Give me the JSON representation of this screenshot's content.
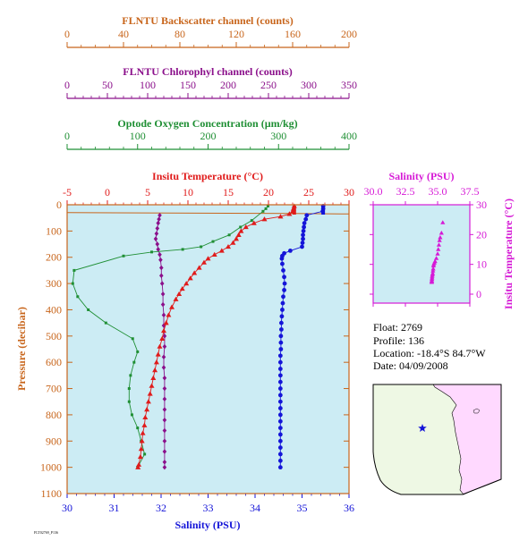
{
  "colors": {
    "backscatter": "#c8651b",
    "chlorophyll": "#8b108b",
    "oxygen": "#1f8f34",
    "temperature": "#e01b1b",
    "salinity": "#1414d8",
    "magenta": "#d61ad6",
    "panel_bg": "#ccecf4",
    "map_land": "#eef8e4",
    "map_sea": "#ffd9ff"
  },
  "float_info": {
    "float": "Float:  2769",
    "profile": "Profile:  136",
    "location": "Location:  -18.4°S  84.7°W",
    "date": "Date:  04/09/2008"
  },
  "footer_code": "FLT02769_P136",
  "chart_data": [
    {
      "type": "line",
      "name": "main_profile",
      "y_axis": {
        "label": "Pressure (decibar)",
        "range": [
          0,
          1100
        ],
        "ticks": [
          0,
          100,
          200,
          300,
          400,
          500,
          600,
          700,
          800,
          900,
          1000,
          1100
        ],
        "inverted": true
      },
      "axes": {
        "backscatter": {
          "title": "FLNTU Backscatter channel (counts)",
          "range": [
            0,
            200
          ],
          "ticks": [
            0,
            40,
            80,
            120,
            160,
            200
          ]
        },
        "chlorophyll": {
          "title": "FLNTU Chlorophyl channel (counts)",
          "range": [
            0,
            350
          ],
          "ticks": [
            0,
            50,
            100,
            150,
            200,
            250,
            300,
            350
          ]
        },
        "oxygen": {
          "title": "Optode Oxygen Concentration (µm/kg)",
          "range": [
            0,
            400
          ],
          "ticks": [
            0,
            100,
            200,
            300,
            400
          ]
        },
        "temperature": {
          "title": "Insitu Temperature (°C)",
          "range": [
            -5,
            30
          ],
          "ticks": [
            -5,
            0,
            5,
            10,
            15,
            20,
            25,
            30
          ]
        },
        "salinity": {
          "title": "Salinity (PSU)",
          "range": [
            30,
            36
          ],
          "ticks": [
            30,
            31,
            32,
            33,
            34,
            35,
            36
          ]
        }
      },
      "series": [
        {
          "key": "temperature",
          "axis": "temperature",
          "marker": "triangle",
          "points": [
            [
              23.2,
              5
            ],
            [
              23.1,
              15
            ],
            [
              23.0,
              25
            ],
            [
              22.6,
              35
            ],
            [
              21.5,
              45
            ],
            [
              19.5,
              55
            ],
            [
              18.2,
              70
            ],
            [
              17.2,
              85
            ],
            [
              16.6,
              100
            ],
            [
              16.3,
              115
            ],
            [
              16.0,
              130
            ],
            [
              15.6,
              145
            ],
            [
              15.0,
              160
            ],
            [
              14.2,
              175
            ],
            [
              13.3,
              190
            ],
            [
              12.5,
              205
            ],
            [
              12.0,
              220
            ],
            [
              11.4,
              240
            ],
            [
              10.8,
              260
            ],
            [
              10.3,
              280
            ],
            [
              9.8,
              300
            ],
            [
              9.3,
              320
            ],
            [
              8.9,
              340
            ],
            [
              8.5,
              360
            ],
            [
              8.0,
              390
            ],
            [
              7.6,
              420
            ],
            [
              7.3,
              450
            ],
            [
              7.0,
              480
            ],
            [
              6.8,
              510
            ],
            [
              6.5,
              540
            ],
            [
              6.3,
              570
            ],
            [
              6.1,
              600
            ],
            [
              5.9,
              630
            ],
            [
              5.7,
              660
            ],
            [
              5.5,
              690
            ],
            [
              5.3,
              720
            ],
            [
              5.1,
              750
            ],
            [
              4.9,
              780
            ],
            [
              4.7,
              810
            ],
            [
              4.6,
              840
            ],
            [
              4.4,
              870
            ],
            [
              4.3,
              900
            ],
            [
              4.2,
              930
            ],
            [
              4.1,
              960
            ],
            [
              3.9,
              990
            ],
            [
              3.8,
              1000
            ]
          ]
        },
        {
          "key": "salinity",
          "axis": "salinity",
          "marker": "circle",
          "points": [
            [
              35.45,
              5
            ],
            [
              35.45,
              15
            ],
            [
              35.44,
              25
            ],
            [
              35.1,
              40
            ],
            [
              35.08,
              55
            ],
            [
              35.05,
              70
            ],
            [
              35.04,
              85
            ],
            [
              35.03,
              100
            ],
            [
              35.02,
              115
            ],
            [
              35.02,
              130
            ],
            [
              35.01,
              145
            ],
            [
              35.0,
              160
            ],
            [
              34.75,
              175
            ],
            [
              34.62,
              185
            ],
            [
              34.58,
              195
            ],
            [
              34.57,
              205
            ],
            [
              34.58,
              225
            ],
            [
              34.6,
              250
            ],
            [
              34.62,
              275
            ],
            [
              34.63,
              300
            ],
            [
              34.62,
              325
            ],
            [
              34.6,
              350
            ],
            [
              34.59,
              375
            ],
            [
              34.58,
              400
            ],
            [
              34.57,
              425
            ],
            [
              34.56,
              450
            ],
            [
              34.56,
              475
            ],
            [
              34.55,
              500
            ],
            [
              34.55,
              525
            ],
            [
              34.55,
              550
            ],
            [
              34.54,
              575
            ],
            [
              34.54,
              600
            ],
            [
              34.54,
              625
            ],
            [
              34.54,
              650
            ],
            [
              34.54,
              675
            ],
            [
              34.54,
              700
            ],
            [
              34.54,
              725
            ],
            [
              34.54,
              750
            ],
            [
              34.54,
              775
            ],
            [
              34.54,
              800
            ],
            [
              34.54,
              825
            ],
            [
              34.54,
              850
            ],
            [
              34.54,
              875
            ],
            [
              34.54,
              900
            ],
            [
              34.54,
              925
            ],
            [
              34.54,
              950
            ],
            [
              34.54,
              975
            ],
            [
              34.54,
              1000
            ]
          ]
        },
        {
          "key": "oxygen",
          "axis": "oxygen",
          "marker": "square",
          "points": [
            [
              285,
              5
            ],
            [
              282,
              15
            ],
            [
              278,
              25
            ],
            [
              262,
              60
            ],
            [
              246,
              85
            ],
            [
              230,
              115
            ],
            [
              207,
              140
            ],
            [
              190,
              160
            ],
            [
              164,
              170
            ],
            [
              120,
              180
            ],
            [
              80,
              195
            ],
            [
              10,
              250
            ],
            [
              8,
              300
            ],
            [
              15,
              350
            ],
            [
              30,
              400
            ],
            [
              55,
              450
            ],
            [
              93,
              510
            ],
            [
              100,
              560
            ],
            [
              95,
              600
            ],
            [
              90,
              650
            ],
            [
              88,
              700
            ],
            [
              88,
              750
            ],
            [
              92,
              800
            ],
            [
              100,
              850
            ],
            [
              105,
              900
            ],
            [
              110,
              950
            ],
            [
              100,
              1000
            ]
          ]
        },
        {
          "key": "chlorophyll",
          "axis": "chlorophyll",
          "marker": "diamond",
          "points": [
            [
              115,
              40
            ],
            [
              114,
              55
            ],
            [
              113,
              70
            ],
            [
              112,
              90
            ],
            [
              111,
              110
            ],
            [
              110,
              130
            ],
            [
              112,
              150
            ],
            [
              113,
              170
            ],
            [
              115,
              190
            ],
            [
              116,
              210
            ],
            [
              117,
              240
            ],
            [
              117,
              270
            ],
            [
              118,
              300
            ],
            [
              119,
              340
            ],
            [
              119,
              380
            ],
            [
              120,
              420
            ],
            [
              120,
              460
            ],
            [
              121,
              500
            ],
            [
              121,
              540
            ],
            [
              120,
              580
            ],
            [
              120,
              620
            ],
            [
              121,
              660
            ],
            [
              121,
              700
            ],
            [
              121,
              740
            ],
            [
              121,
              780
            ],
            [
              121,
              820
            ],
            [
              121,
              860
            ],
            [
              121,
              900
            ],
            [
              121,
              940
            ],
            [
              121,
              980
            ],
            [
              121,
              1000
            ]
          ]
        },
        {
          "key": "backscatter",
          "axis": "backscatter",
          "marker": "none",
          "points": [
            [
              0,
              30
            ],
            [
              160,
              33
            ],
            [
              200,
              35
            ]
          ]
        }
      ]
    },
    {
      "type": "scatter",
      "name": "ts_diagram",
      "x_axis": {
        "title": "Salinity (PSU)",
        "range": [
          30,
          37.5
        ],
        "ticks": [
          30.0,
          32.5,
          35.0,
          37.5
        ],
        "tick_labels": [
          "30.0",
          "32.5",
          "35.0",
          "37.5"
        ]
      },
      "y_axis": {
        "title": "Insitu Temperature (°C)",
        "range": [
          -3,
          30
        ],
        "ticks": [
          0,
          10,
          20,
          30
        ]
      },
      "points": [
        [
          35.4,
          24.0
        ],
        [
          35.3,
          20.5
        ],
        [
          35.2,
          19.0
        ],
        [
          35.15,
          18.0
        ],
        [
          35.1,
          16.5
        ],
        [
          35.05,
          15.0
        ],
        [
          35.0,
          13.5
        ],
        [
          34.9,
          12.0
        ],
        [
          34.8,
          11.0
        ],
        [
          34.75,
          10.5
        ],
        [
          34.7,
          10.0
        ],
        [
          34.68,
          9.5
        ],
        [
          34.66,
          8.5
        ],
        [
          34.64,
          7.8
        ],
        [
          34.62,
          7.0
        ],
        [
          34.6,
          6.5
        ],
        [
          34.58,
          6.0
        ],
        [
          34.57,
          5.5
        ],
        [
          34.56,
          5.0
        ],
        [
          34.55,
          4.5
        ],
        [
          34.55,
          4.2
        ],
        [
          34.54,
          4.0
        ]
      ]
    }
  ]
}
